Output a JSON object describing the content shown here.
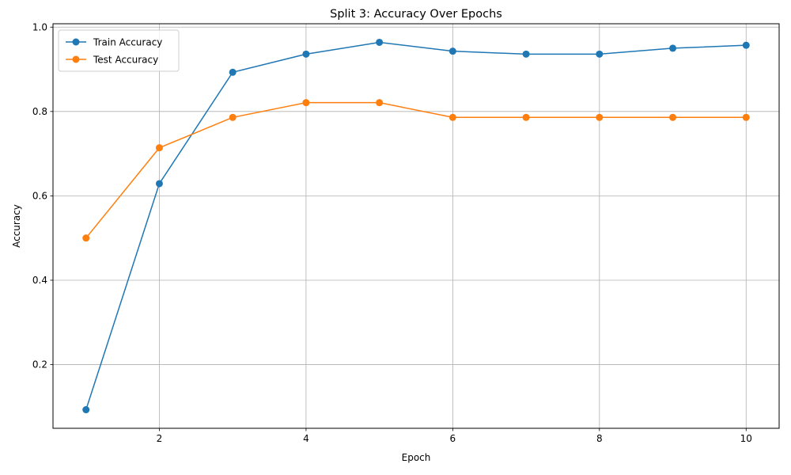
{
  "chart_data": {
    "type": "line",
    "title": "Split 3: Accuracy Over Epochs",
    "xlabel": "Epoch",
    "ylabel": "Accuracy",
    "x": [
      1,
      2,
      3,
      4,
      5,
      6,
      7,
      8,
      9,
      10
    ],
    "series": [
      {
        "name": "Train Accuracy",
        "color": "#1f77b4",
        "values": [
          0.093,
          0.629,
          0.893,
          0.936,
          0.964,
          0.943,
          0.936,
          0.936,
          0.95,
          0.957
        ]
      },
      {
        "name": "Test Accuracy",
        "color": "#ff7f0e",
        "values": [
          0.5,
          0.714,
          0.786,
          0.821,
          0.821,
          0.786,
          0.786,
          0.786,
          0.786,
          0.786
        ]
      }
    ],
    "xlim": [
      0.55,
      10.45
    ],
    "ylim": [
      0.049,
      1.008
    ],
    "xticks": [
      2,
      4,
      6,
      8,
      10
    ],
    "xtick_labels": [
      "2",
      "4",
      "6",
      "8",
      "10"
    ],
    "yticks": [
      0.2,
      0.4,
      0.6,
      0.8,
      1.0
    ],
    "ytick_labels": [
      "0.2",
      "0.4",
      "0.6",
      "0.8",
      "1.0"
    ],
    "grid": true,
    "legend_position": "upper-left",
    "marker": "circle"
  }
}
